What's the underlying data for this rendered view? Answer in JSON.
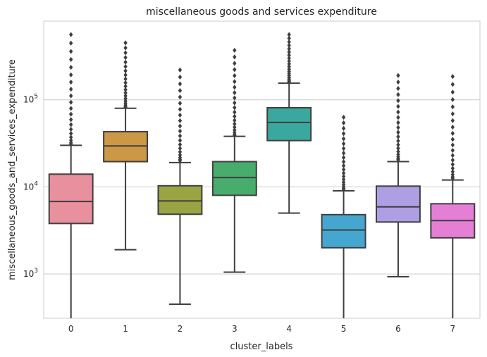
{
  "chart_data": {
    "type": "boxplot",
    "title": "miscellaneous goods and services expenditure",
    "xlabel": "cluster_labels",
    "ylabel": "miscellaneous_goods_and_services_expenditure",
    "y_scale": "log",
    "ylim": [
      310,
      800000
    ],
    "y_ticks": [
      {
        "value": 1000,
        "base": "10",
        "exp": "3"
      },
      {
        "value": 10000,
        "base": "10",
        "exp": "4"
      },
      {
        "value": 100000,
        "base": "10",
        "exp": "5"
      }
    ],
    "grid": true,
    "categories": [
      "0",
      "1",
      "2",
      "3",
      "4",
      "5",
      "6",
      "7"
    ],
    "boxes": [
      {
        "label": "0",
        "color": "#e8909e",
        "q1": 3800,
        "median": 6800,
        "q3": 14000,
        "whisker_low": 310,
        "whisker_high": 30000,
        "outlier_min": 31000,
        "outlier_max": 560000
      },
      {
        "label": "1",
        "color": "#cc9848",
        "q1": 19500,
        "median": 29500,
        "q3": 43000,
        "whisker_low": 1900,
        "whisker_high": 80000,
        "outlier_min": 82000,
        "outlier_max": 450000
      },
      {
        "label": "2",
        "color": "#9aa443",
        "q1": 4850,
        "median": 6900,
        "q3": 10300,
        "whisker_low": 450,
        "whisker_high": 19000,
        "outlier_min": 20000,
        "outlier_max": 220000
      },
      {
        "label": "3",
        "color": "#47ac6c",
        "q1": 8000,
        "median": 12800,
        "q3": 19500,
        "whisker_low": 1050,
        "whisker_high": 38000,
        "outlier_min": 39000,
        "outlier_max": 370000
      },
      {
        "label": "4",
        "color": "#3aa89e",
        "q1": 34000,
        "median": 55000,
        "q3": 81000,
        "whisker_low": 5000,
        "whisker_high": 155000,
        "outlier_min": 160000,
        "outlier_max": 560000
      },
      {
        "label": "5",
        "color": "#45a6cf",
        "q1": 2000,
        "median": 3200,
        "q3": 4800,
        "whisker_low": 310,
        "whisker_high": 9000,
        "outlier_min": 9400,
        "outlier_max": 63000
      },
      {
        "label": "6",
        "color": "#ae9fe5",
        "q1": 3950,
        "median": 5900,
        "q3": 10200,
        "whisker_low": 930,
        "whisker_high": 19500,
        "outlier_min": 20500,
        "outlier_max": 190000
      },
      {
        "label": "7",
        "color": "#e57fd6",
        "q1": 2600,
        "median": 4100,
        "q3": 6400,
        "whisker_low": 310,
        "whisker_high": 12000,
        "outlier_min": 12600,
        "outlier_max": 185000
      }
    ]
  }
}
